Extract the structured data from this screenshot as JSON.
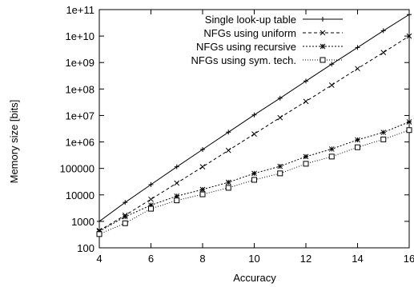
{
  "chart_data": {
    "type": "line",
    "xlabel": "Accuracy",
    "ylabel": "Memory size [bits]",
    "yscale": "log",
    "xlim": [
      4,
      16
    ],
    "ylim": [
      100,
      100000000000
    ],
    "xticks": [
      4,
      6,
      8,
      10,
      12,
      14,
      16
    ],
    "xtick_labels": [
      "4",
      "6",
      "8",
      "10",
      "12",
      "14",
      "16"
    ],
    "yticks": [
      100,
      1000,
      10000,
      100000,
      1000000,
      10000000,
      100000000,
      1000000000,
      10000000000,
      100000000000
    ],
    "ytick_labels": [
      "100",
      "1000",
      "10000",
      "100000",
      "1e+06",
      "1e+07",
      "1e+08",
      "1e+09",
      "1e+10",
      "1e+11"
    ],
    "grid": false,
    "legend_position": "top-left",
    "x": [
      4,
      5,
      6,
      7,
      8,
      9,
      10,
      11,
      12,
      13,
      14,
      15,
      16
    ],
    "series": [
      {
        "name": "Single look-up table",
        "marker": "plus",
        "dash": "solid",
        "values": [
          1000,
          5200,
          24500,
          115000,
          520000,
          2350000,
          10500000,
          45000000,
          200000000,
          870000000,
          3700000000,
          16000000000,
          65000000000
        ]
      },
      {
        "name": "NFGs using uniform",
        "marker": "x",
        "dash": "dashed",
        "values": [
          450,
          1700,
          6800,
          28000,
          115000,
          480000,
          2000000,
          8300000,
          34000000,
          140000000,
          590000000,
          2400000000,
          10000000000
        ]
      },
      {
        "name": "NFGs using recursive",
        "marker": "star",
        "dash": "dotted",
        "values": [
          420,
          1500,
          4100,
          9000,
          16000,
          30000,
          65000,
          120000,
          280000,
          540000,
          1200000,
          2300000,
          5700000
        ]
      },
      {
        "name": "NFGs using sym. tech.",
        "marker": "square",
        "dash": "finedotted",
        "values": [
          330,
          850,
          3000,
          6200,
          10500,
          18500,
          37000,
          65000,
          150000,
          280000,
          630000,
          1250000,
          2800000
        ]
      }
    ]
  }
}
